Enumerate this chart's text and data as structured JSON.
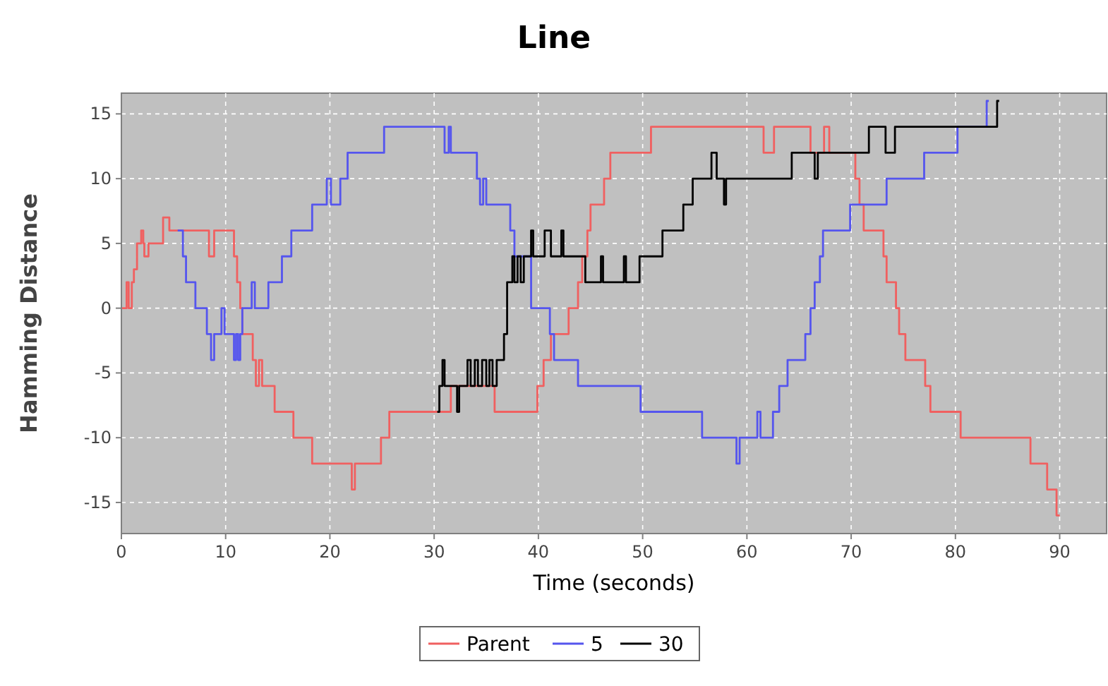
{
  "chart_data": {
    "type": "step",
    "title": "Line",
    "xlabel": "Time (seconds)",
    "ylabel": "Hamming Distance",
    "xlim": [
      0,
      94.5
    ],
    "ylim": [
      -17.4,
      16.6
    ],
    "xticks": [
      0,
      10,
      20,
      30,
      40,
      50,
      60,
      70,
      80,
      90
    ],
    "yticks": [
      -15,
      -10,
      -5,
      0,
      5,
      10,
      15
    ],
    "grid": true,
    "legend": "bottom",
    "line_style": "solid",
    "marker": "none",
    "series": [
      {
        "name": "Parent",
        "color": "#f06060",
        "x": [
          0,
          0.5,
          0.7,
          1.0,
          1.2,
          1.5,
          1.9,
          2.1,
          2.2,
          2.6,
          4.0,
          4.6,
          8.4,
          8.9,
          10.8,
          11.1,
          11.4,
          11.6,
          12.6,
          12.9,
          13.2,
          13.5,
          14.7,
          16.5,
          18.3,
          22.1,
          22.4,
          24.9,
          25.7,
          31.6,
          35.8,
          39.9,
          40.5,
          41.2,
          42.9,
          43.8,
          44.2,
          44.7,
          45.0,
          46.3,
          46.9,
          50.8,
          61.6,
          62.6,
          66.1,
          67.4,
          67.9,
          70.4,
          70.8,
          71.2,
          73.1,
          73.4,
          74.3,
          74.6,
          75.2,
          77.1,
          77.6,
          80.5,
          87.2,
          88.8,
          89.7,
          90.0
        ],
        "values": [
          0,
          2,
          0,
          2,
          3,
          5,
          6,
          5,
          4,
          5,
          7,
          6,
          4,
          6,
          4,
          2,
          0,
          -2,
          -4,
          -6,
          -4,
          -6,
          -8,
          -10,
          -12,
          -14,
          -12,
          -10,
          -8,
          -6,
          -8,
          -6,
          -4,
          -2,
          0,
          2,
          4,
          6,
          8,
          10,
          12,
          14,
          12,
          14,
          12,
          14,
          12,
          10,
          8,
          6,
          4,
          2,
          0,
          -2,
          -4,
          -6,
          -8,
          -10,
          -12,
          -14,
          -16,
          -16
        ]
      },
      {
        "name": "5",
        "color": "#5555ee",
        "x": [
          5.4,
          5.9,
          6.2,
          7.1,
          8.2,
          8.6,
          8.9,
          9.6,
          9.9,
          10.8,
          11.0,
          11.2,
          11.4,
          11.6,
          12.5,
          12.8,
          14.1,
          15.4,
          16.3,
          18.3,
          19.7,
          20.1,
          21.0,
          21.7,
          25.2,
          31.0,
          31.4,
          31.6,
          34.1,
          34.4,
          34.7,
          35.0,
          37.3,
          37.7,
          39.3,
          41.1,
          41.5,
          43.8,
          49.8,
          55.7,
          59.0,
          59.3,
          61.0,
          61.3,
          62.5,
          63.1,
          63.9,
          65.6,
          66.1,
          66.5,
          67.0,
          67.3,
          69.9,
          73.4,
          77.0,
          80.2,
          83.0,
          83.2
        ],
        "values": [
          6,
          4,
          2,
          0,
          -2,
          -4,
          -2,
          0,
          -2,
          -4,
          -2,
          -4,
          -2,
          0,
          2,
          0,
          2,
          4,
          6,
          8,
          10,
          8,
          10,
          12,
          14,
          12,
          14,
          12,
          10,
          8,
          10,
          8,
          6,
          4,
          0,
          -2,
          -4,
          -6,
          -8,
          -10,
          -12,
          -10,
          -8,
          -10,
          -8,
          -6,
          -4,
          -2,
          0,
          2,
          4,
          6,
          8,
          10,
          12,
          14,
          16,
          16
        ]
      },
      {
        "name": "30",
        "color": "#000000",
        "x": [
          30.3,
          30.5,
          30.8,
          31.0,
          32.2,
          32.4,
          33.2,
          33.5,
          33.9,
          34.2,
          34.6,
          35.0,
          35.3,
          35.6,
          36.0,
          36.4,
          36.7,
          37.0,
          37.5,
          37.7,
          38.0,
          38.3,
          38.6,
          39.3,
          39.5,
          40.6,
          41.2,
          42.2,
          42.4,
          44.5,
          46.0,
          46.2,
          48.2,
          48.4,
          49.7,
          51.9,
          53.9,
          54.8,
          56.6,
          57.1,
          57.8,
          58.0,
          64.3,
          66.5,
          66.8,
          71.7,
          73.3,
          74.2,
          84.0,
          84.2
        ],
        "values": [
          -8,
          -6,
          -4,
          -6,
          -8,
          -6,
          -4,
          -6,
          -4,
          -6,
          -4,
          -6,
          -4,
          -6,
          -4,
          -4,
          -2,
          2,
          4,
          2,
          4,
          2,
          4,
          6,
          4,
          6,
          4,
          6,
          4,
          2,
          4,
          2,
          4,
          2,
          4,
          6,
          8,
          10,
          12,
          10,
          8,
          10,
          12,
          10,
          12,
          14,
          12,
          14,
          16,
          16
        ]
      }
    ]
  }
}
